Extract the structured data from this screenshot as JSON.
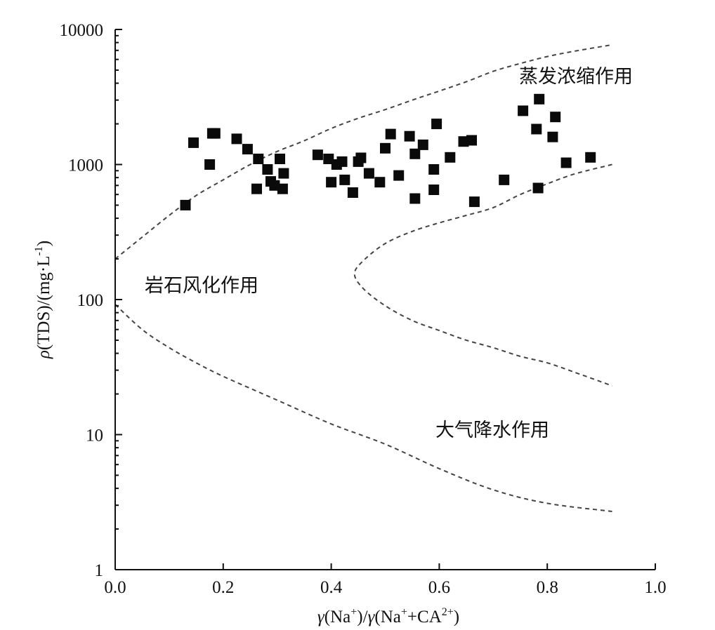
{
  "chart_data": {
    "type": "scatter",
    "title": "",
    "xlabel": {
      "p1": "γ",
      "p2": "(Na",
      "p3": "+",
      "p4": ")/",
      "p5": "γ",
      "p6": "(Na",
      "p7": "+",
      "p8": "+CA",
      "p9": "2+",
      "p10": ")"
    },
    "ylabel": {
      "p1": "ρ",
      "p2": "(TDS)/(mg·L",
      "p3": "-1",
      "p4": ")"
    },
    "xlim": [
      0.0,
      1.0
    ],
    "ylim": [
      1,
      10000
    ],
    "y_scale": "log",
    "grid": false,
    "x_ticks": [
      "0.0",
      "0.2",
      "0.4",
      "0.6",
      "0.8",
      "1.0"
    ],
    "y_ticks": [
      "1",
      "10",
      "100",
      "1000",
      "10000"
    ],
    "annotations": [
      {
        "text": "蒸发浓缩作用",
        "x": 0.74,
        "y": 4200
      },
      {
        "text": "岩石风化作用",
        "x": 0.055,
        "y": 125
      },
      {
        "text": "大气降水作用",
        "x": 0.595,
        "y": 11
      }
    ],
    "boundaries": [
      {
        "points": [
          [
            0.0,
            200
          ],
          [
            0.05,
            290
          ],
          [
            0.1,
            420
          ],
          [
            0.15,
            590
          ],
          [
            0.2,
            770
          ],
          [
            0.25,
            1000
          ],
          [
            0.3,
            1250
          ],
          [
            0.35,
            1500
          ],
          [
            0.4,
            1850
          ],
          [
            0.45,
            2200
          ],
          [
            0.5,
            2550
          ],
          [
            0.55,
            3000
          ],
          [
            0.6,
            3500
          ],
          [
            0.65,
            4100
          ],
          [
            0.7,
            4900
          ],
          [
            0.75,
            5600
          ],
          [
            0.8,
            6300
          ],
          [
            0.85,
            6900
          ],
          [
            0.92,
            7700
          ]
        ]
      },
      {
        "points": [
          [
            0.92,
            1000
          ],
          [
            0.85,
            850
          ],
          [
            0.8,
            720
          ],
          [
            0.75,
            600
          ],
          [
            0.7,
            480
          ],
          [
            0.65,
            420
          ],
          [
            0.6,
            370
          ],
          [
            0.55,
            320
          ],
          [
            0.5,
            260
          ],
          [
            0.46,
            195
          ],
          [
            0.443,
            155
          ],
          [
            0.46,
            120
          ],
          [
            0.5,
            90
          ],
          [
            0.55,
            70
          ],
          [
            0.6,
            59
          ],
          [
            0.65,
            50
          ],
          [
            0.7,
            44
          ],
          [
            0.75,
            38
          ],
          [
            0.8,
            34
          ],
          [
            0.85,
            29
          ],
          [
            0.92,
            23
          ]
        ]
      },
      {
        "points": [
          [
            0.0,
            92
          ],
          [
            0.05,
            60
          ],
          [
            0.1,
            44
          ],
          [
            0.15,
            34
          ],
          [
            0.2,
            27
          ],
          [
            0.3,
            18
          ],
          [
            0.4,
            12
          ],
          [
            0.5,
            8.5
          ],
          [
            0.6,
            5.6
          ],
          [
            0.7,
            3.9
          ],
          [
            0.8,
            3.1
          ],
          [
            0.92,
            2.7
          ]
        ]
      }
    ],
    "series": [
      {
        "points": [
          [
            0.13,
            500
          ],
          [
            0.145,
            1450
          ],
          [
            0.175,
            1000
          ],
          [
            0.18,
            1700
          ],
          [
            0.185,
            1700
          ],
          [
            0.225,
            1550
          ],
          [
            0.245,
            1300
          ],
          [
            0.265,
            1100
          ],
          [
            0.262,
            660
          ],
          [
            0.282,
            920
          ],
          [
            0.288,
            750
          ],
          [
            0.295,
            700
          ],
          [
            0.305,
            1100
          ],
          [
            0.31,
            660
          ],
          [
            0.312,
            860
          ],
          [
            0.375,
            1180
          ],
          [
            0.395,
            1100
          ],
          [
            0.4,
            740
          ],
          [
            0.41,
            1000
          ],
          [
            0.42,
            1050
          ],
          [
            0.425,
            770
          ],
          [
            0.44,
            620
          ],
          [
            0.45,
            1050
          ],
          [
            0.455,
            1120
          ],
          [
            0.47,
            860
          ],
          [
            0.49,
            740
          ],
          [
            0.5,
            1320
          ],
          [
            0.51,
            1680
          ],
          [
            0.525,
            830
          ],
          [
            0.545,
            1620
          ],
          [
            0.555,
            1200
          ],
          [
            0.555,
            560
          ],
          [
            0.57,
            1400
          ],
          [
            0.59,
            920
          ],
          [
            0.59,
            650
          ],
          [
            0.595,
            2000
          ],
          [
            0.62,
            1130
          ],
          [
            0.645,
            1480
          ],
          [
            0.66,
            1510
          ],
          [
            0.665,
            530
          ],
          [
            0.72,
            770
          ],
          [
            0.755,
            2500
          ],
          [
            0.78,
            1830
          ],
          [
            0.783,
            670
          ],
          [
            0.785,
            3050
          ],
          [
            0.81,
            1600
          ],
          [
            0.815,
            2250
          ],
          [
            0.835,
            1030
          ],
          [
            0.88,
            1130
          ]
        ]
      }
    ]
  }
}
